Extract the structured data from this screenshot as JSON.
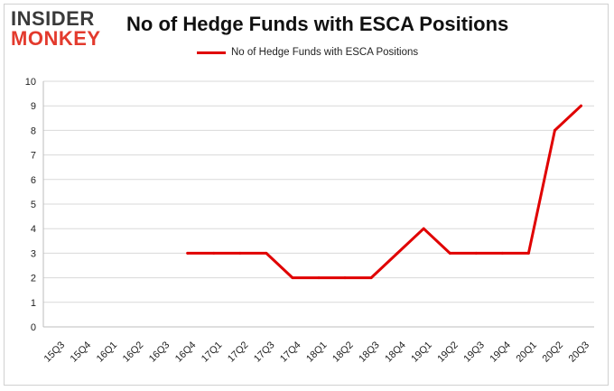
{
  "header": {
    "logo_line1": "INSIDER",
    "logo_line2": "MONKEY",
    "title": "No of Hedge Funds with ESCA Positions"
  },
  "colors": {
    "series": "#e00000",
    "logo_dark": "#3a3a3a",
    "logo_accent": "#e33a2d",
    "grid": "#d9d9d9"
  },
  "chart_data": {
    "type": "line",
    "title": "No of Hedge Funds with ESCA Positions",
    "xlabel": "",
    "ylabel": "",
    "categories": [
      "15Q3",
      "15Q4",
      "16Q1",
      "16Q2",
      "16Q3",
      "16Q4",
      "17Q1",
      "17Q2",
      "17Q3",
      "17Q4",
      "18Q1",
      "18Q2",
      "18Q3",
      "18Q4",
      "19Q1",
      "19Q2",
      "19Q3",
      "19Q4",
      "20Q1",
      "20Q2",
      "20Q3"
    ],
    "series": [
      {
        "name": "No of Hedge Funds with ESCA Positions",
        "values": [
          null,
          null,
          null,
          null,
          null,
          3,
          3,
          3,
          3,
          2,
          2,
          2,
          2,
          3,
          4,
          3,
          3,
          3,
          3,
          8,
          9
        ]
      }
    ],
    "ylim": [
      0,
      10
    ],
    "yticks": [
      0,
      1,
      2,
      3,
      4,
      5,
      6,
      7,
      8,
      9,
      10
    ],
    "grid": true,
    "legend_position": "top-center"
  }
}
